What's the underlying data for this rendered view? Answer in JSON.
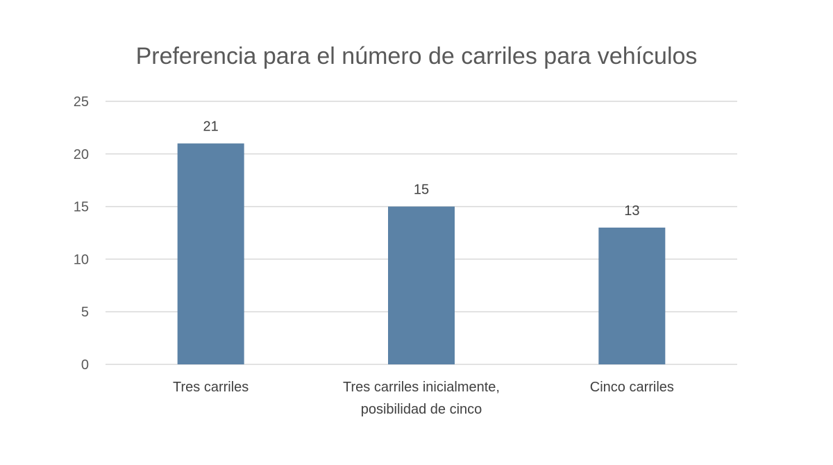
{
  "chart_data": {
    "type": "bar",
    "title": "Preferencia para el número de carriles para vehículos",
    "categories": [
      [
        "Tres carriles"
      ],
      [
        "Tres carriles inicialmente,",
        "posibilidad de cinco"
      ],
      [
        "Cinco carriles"
      ]
    ],
    "values": [
      21,
      15,
      13
    ],
    "data_labels": [
      "21",
      "15",
      "13"
    ],
    "ylim": [
      0,
      25
    ],
    "y_ticks": [
      0,
      5,
      10,
      15,
      20,
      25
    ],
    "grid": true,
    "legend": "none",
    "bar_color": "#5b82a6",
    "grid_color": "#d9d9d9"
  }
}
